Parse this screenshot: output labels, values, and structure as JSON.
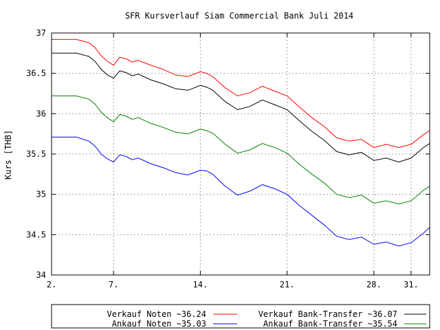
{
  "chart_data": {
    "type": "line",
    "title": "SFR Kursverlauf Siam Commercial Bank Juli 2014",
    "xlabel": "",
    "ylabel": "Kurs [THB]",
    "xlim": [
      2,
      32.5
    ],
    "ylim": [
      34,
      37
    ],
    "x_ticks": [
      {
        "value": 2,
        "label": "2."
      },
      {
        "value": 7,
        "label": "7."
      },
      {
        "value": 14,
        "label": "14."
      },
      {
        "value": 21,
        "label": "21."
      },
      {
        "value": 28,
        "label": "28."
      },
      {
        "value": 31,
        "label": "31."
      }
    ],
    "y_ticks": [
      34,
      34.5,
      35,
      35.5,
      36,
      36.5,
      37
    ],
    "y_tick_labels": [
      "34",
      "34.5",
      "35",
      "35.5",
      "36",
      "36.5",
      "37"
    ],
    "grid": true,
    "legend_position": "bottom",
    "series": [
      {
        "name": "Verkauf Noten ~36.24",
        "color": "#ff0000",
        "x": [
          2,
          3,
          4,
          5,
          5.5,
          6,
          6.5,
          7,
          7.5,
          8,
          8.5,
          9,
          10,
          11,
          12,
          13,
          14,
          14.5,
          15,
          16,
          17,
          18,
          19,
          20,
          21,
          22,
          23,
          24,
          25,
          26,
          27,
          28,
          29,
          30,
          31,
          32,
          32.5
        ],
        "values": [
          36.92,
          36.92,
          36.92,
          36.88,
          36.82,
          36.72,
          36.65,
          36.6,
          36.7,
          36.68,
          36.64,
          36.66,
          36.6,
          36.55,
          36.48,
          36.46,
          36.52,
          36.5,
          36.46,
          36.32,
          36.22,
          36.26,
          36.34,
          36.28,
          36.22,
          36.08,
          35.95,
          35.84,
          35.7,
          35.66,
          35.68,
          35.58,
          35.62,
          35.58,
          35.62,
          35.74,
          35.79
        ]
      },
      {
        "name": "Ankauf Noten ~35.03",
        "color": "#0000ff",
        "x": [
          2,
          3,
          4,
          5,
          5.5,
          6,
          6.5,
          7,
          7.5,
          8,
          8.5,
          9,
          10,
          11,
          12,
          13,
          14,
          14.5,
          15,
          16,
          17,
          18,
          19,
          20,
          21,
          22,
          23,
          24,
          25,
          26,
          27,
          28,
          29,
          30,
          31,
          32,
          32.5
        ],
        "values": [
          35.71,
          35.71,
          35.71,
          35.66,
          35.6,
          35.5,
          35.44,
          35.4,
          35.49,
          35.47,
          35.43,
          35.45,
          35.38,
          35.33,
          35.27,
          35.24,
          35.3,
          35.29,
          35.25,
          35.1,
          34.99,
          35.04,
          35.12,
          35.07,
          35.0,
          34.86,
          34.74,
          34.62,
          34.48,
          34.44,
          34.47,
          34.38,
          34.41,
          34.36,
          34.4,
          34.52,
          34.59
        ]
      },
      {
        "name": "Verkauf Bank-Transfer ~36.07",
        "color": "#000000",
        "x": [
          2,
          3,
          4,
          5,
          5.5,
          6,
          6.5,
          7,
          7.5,
          8,
          8.5,
          9,
          10,
          11,
          12,
          13,
          14,
          14.5,
          15,
          16,
          17,
          18,
          19,
          20,
          21,
          22,
          23,
          24,
          25,
          26,
          27,
          28,
          29,
          30,
          31,
          32,
          32.5
        ],
        "values": [
          36.75,
          36.75,
          36.75,
          36.71,
          36.65,
          36.55,
          36.48,
          36.44,
          36.53,
          36.51,
          36.47,
          36.49,
          36.42,
          36.37,
          36.31,
          36.29,
          36.35,
          36.33,
          36.29,
          36.15,
          36.05,
          36.09,
          36.17,
          36.11,
          36.05,
          35.91,
          35.78,
          35.67,
          35.53,
          35.49,
          35.52,
          35.42,
          35.45,
          35.4,
          35.45,
          35.58,
          35.63
        ]
      },
      {
        "name": "Ankauf Bank-Transfer ~35.54",
        "color": "#008000",
        "x": [
          2,
          3,
          4,
          5,
          5.5,
          6,
          6.5,
          7,
          7.5,
          8,
          8.5,
          9,
          10,
          11,
          12,
          13,
          14,
          14.5,
          15,
          16,
          17,
          18,
          19,
          20,
          21,
          22,
          23,
          24,
          25,
          26,
          27,
          28,
          29,
          30,
          31,
          32,
          32.5
        ],
        "values": [
          36.22,
          36.22,
          36.22,
          36.18,
          36.12,
          36.02,
          35.95,
          35.9,
          35.99,
          35.97,
          35.93,
          35.95,
          35.88,
          35.83,
          35.77,
          35.75,
          35.81,
          35.79,
          35.76,
          35.62,
          35.51,
          35.55,
          35.63,
          35.58,
          35.51,
          35.37,
          35.25,
          35.14,
          35.0,
          34.96,
          34.99,
          34.89,
          34.92,
          34.88,
          34.92,
          35.05,
          35.1
        ]
      }
    ]
  }
}
